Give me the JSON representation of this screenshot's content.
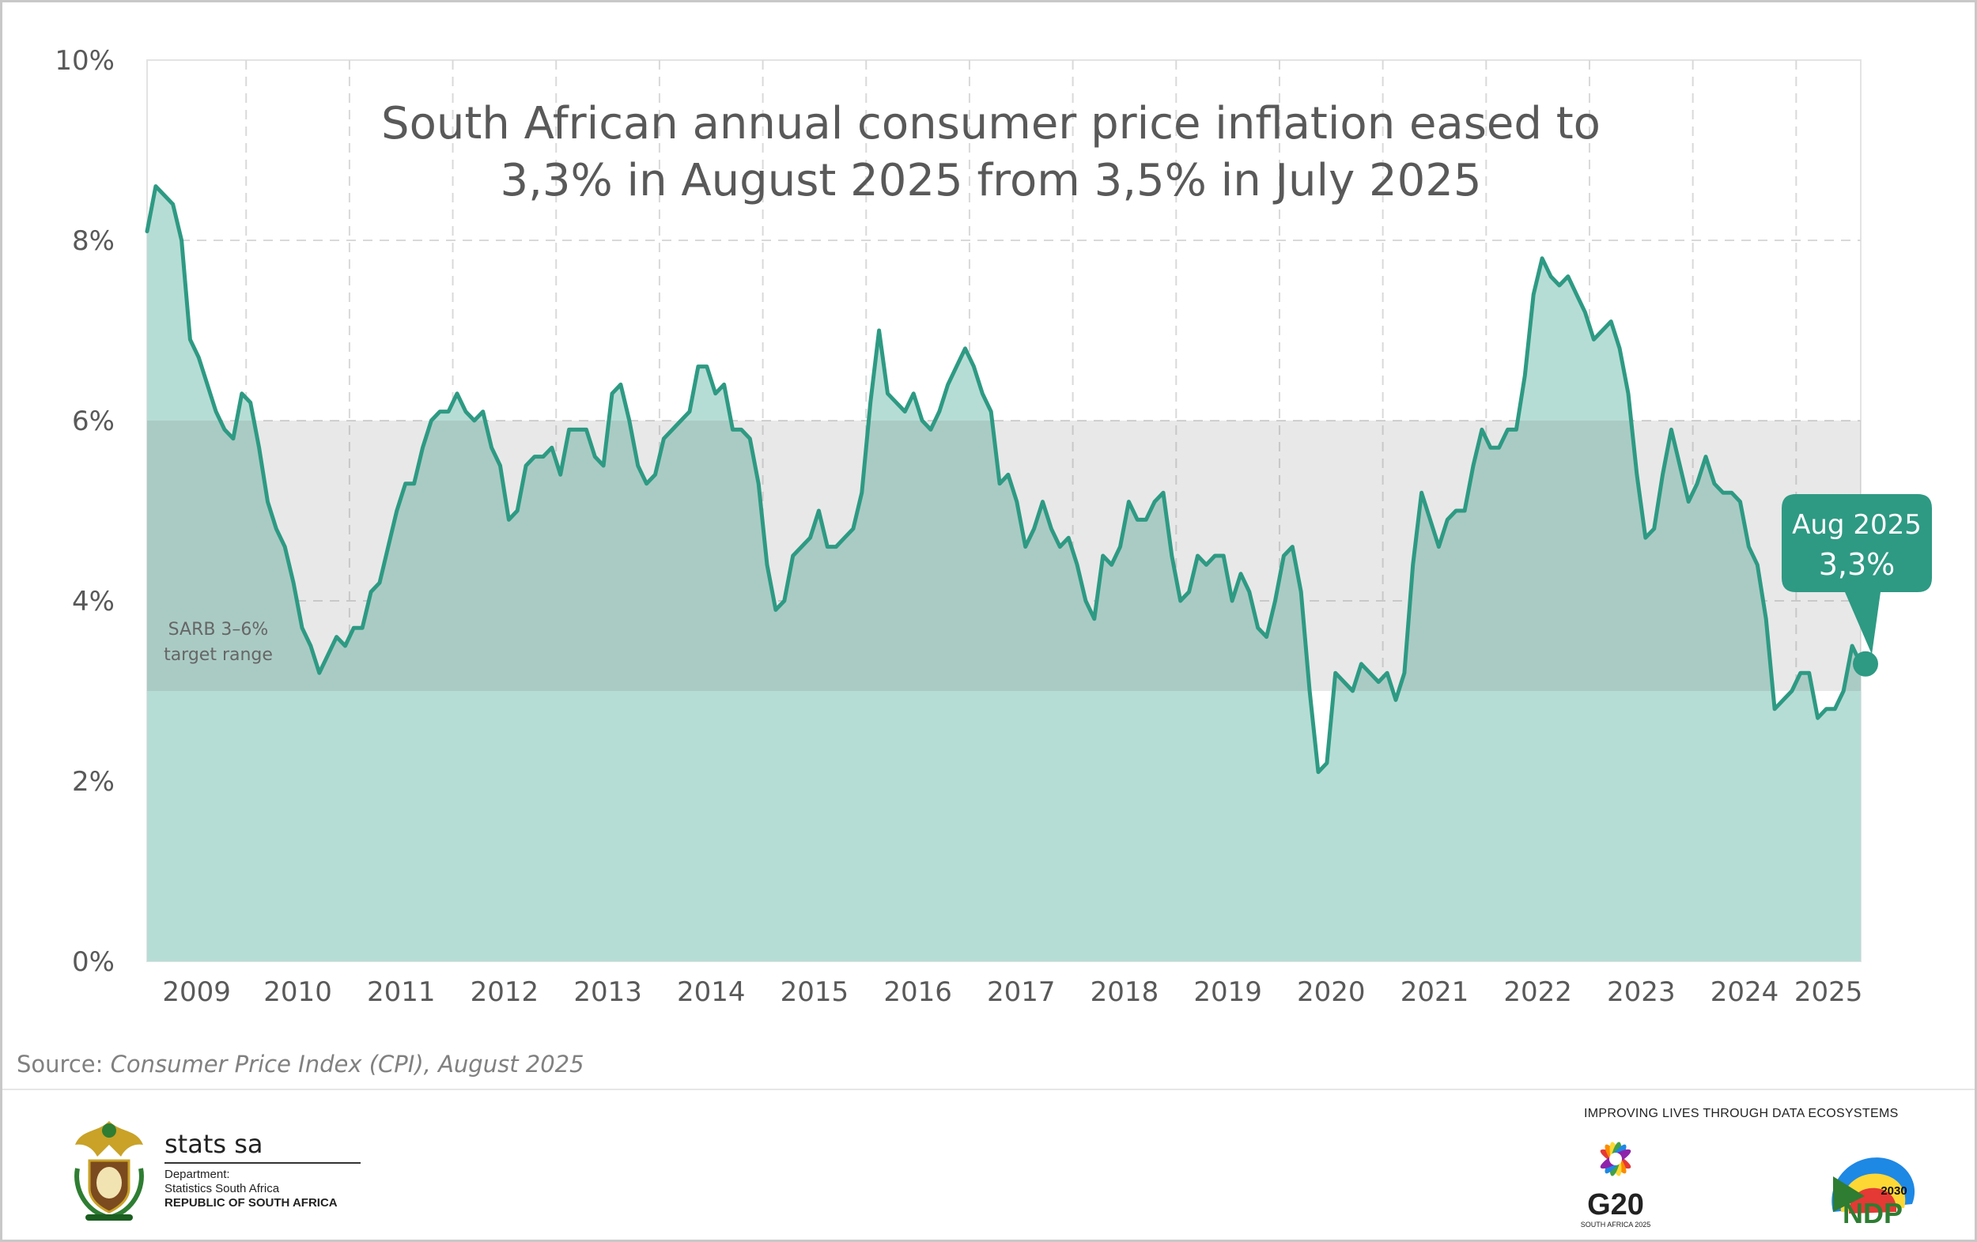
{
  "title_line1": "South African annual consumer price inflation eased to",
  "title_line2": "3,3% in August 2025 from 3,5% in July 2025",
  "source_prefix": "Source: ",
  "source_text": "Consumer Price Index (CPI), August 2025",
  "band_label_line1": "SARB 3–6%",
  "band_label_line2": "target range",
  "callout_line1": "Aug 2025",
  "callout_line2": "3,3%",
  "footer": {
    "stats_name": "stats sa",
    "dept_line1": "Department:",
    "dept_line2": "Statistics South Africa",
    "dept_line3": "REPUBLIC OF SOUTH AFRICA",
    "tagline": "IMPROVING LIVES THROUGH DATA ECOSYSTEMS",
    "g20_text": "G20",
    "g20_sub": "SOUTH AFRICA 2025",
    "ndp_text": "NDP",
    "ndp_year": "2030"
  },
  "colors": {
    "line": "#2e9a83",
    "area": "#b6ddd5",
    "band": "#e8e8e8",
    "band_over_area": "#a7cbc3",
    "callout": "#2e9a83",
    "grid": "#d9d9d9",
    "text": "#595959"
  },
  "chart_data": {
    "type": "area",
    "title": "South African annual consumer price inflation eased to 3,3% in August 2025 from 3,5% in July 2025",
    "xlabel": "",
    "ylabel": "",
    "x_start": "2009-01",
    "x_end": "2025-08",
    "x_tick_labels": [
      "2009",
      "2010",
      "2011",
      "2012",
      "2013",
      "2014",
      "2015",
      "2016",
      "2017",
      "2018",
      "2019",
      "2020",
      "2021",
      "2022",
      "2023",
      "2024",
      "2025"
    ],
    "y_tick_labels": [
      "0%",
      "2%",
      "4%",
      "6%",
      "8%",
      "10%"
    ],
    "ylim": [
      0,
      10
    ],
    "grid": true,
    "target_band": {
      "low": 3,
      "high": 6,
      "label": "SARB 3–6% target range"
    },
    "series": [
      {
        "name": "",
        "values": [
          8.1,
          8.6,
          8.5,
          8.4,
          8.0,
          6.9,
          6.7,
          6.4,
          6.1,
          5.9,
          5.8,
          6.3,
          6.2,
          5.7,
          5.1,
          4.8,
          4.6,
          4.2,
          3.7,
          3.5,
          3.2,
          3.4,
          3.6,
          3.5,
          3.7,
          3.7,
          4.1,
          4.2,
          4.6,
          5.0,
          5.3,
          5.3,
          5.7,
          6.0,
          6.1,
          6.1,
          6.3,
          6.1,
          6.0,
          6.1,
          5.7,
          5.5,
          4.9,
          5.0,
          5.5,
          5.6,
          5.6,
          5.7,
          5.4,
          5.9,
          5.9,
          5.9,
          5.6,
          5.5,
          6.3,
          6.4,
          6.0,
          5.5,
          5.3,
          5.4,
          5.8,
          5.9,
          6.0,
          6.1,
          6.6,
          6.6,
          6.3,
          6.4,
          5.9,
          5.9,
          5.8,
          5.3,
          4.4,
          3.9,
          4.0,
          4.5,
          4.6,
          4.7,
          5.0,
          4.6,
          4.6,
          4.7,
          4.8,
          5.2,
          6.2,
          7.0,
          6.3,
          6.2,
          6.1,
          6.3,
          6.0,
          5.9,
          6.1,
          6.4,
          6.6,
          6.8,
          6.6,
          6.3,
          6.1,
          5.3,
          5.4,
          5.1,
          4.6,
          4.8,
          5.1,
          4.8,
          4.6,
          4.7,
          4.4,
          4.0,
          3.8,
          4.5,
          4.4,
          4.6,
          5.1,
          4.9,
          4.9,
          5.1,
          5.2,
          4.5,
          4.0,
          4.1,
          4.5,
          4.4,
          4.5,
          4.5,
          4.0,
          4.3,
          4.1,
          3.7,
          3.6,
          4.0,
          4.5,
          4.6,
          4.1,
          3.0,
          2.1,
          2.2,
          3.2,
          3.1,
          3.0,
          3.3,
          3.2,
          3.1,
          3.2,
          2.9,
          3.2,
          4.4,
          5.2,
          4.9,
          4.6,
          4.9,
          5.0,
          5.0,
          5.5,
          5.9,
          5.7,
          5.7,
          5.9,
          5.9,
          6.5,
          7.4,
          7.8,
          7.6,
          7.5,
          7.6,
          7.4,
          7.2,
          6.9,
          7.0,
          7.1,
          6.8,
          6.3,
          5.4,
          4.7,
          4.8,
          5.4,
          5.9,
          5.5,
          5.1,
          5.3,
          5.6,
          5.3,
          5.2,
          5.2,
          5.1,
          4.6,
          4.4,
          3.8,
          2.8,
          2.9,
          3.0,
          3.2,
          3.2,
          2.7,
          2.8,
          2.8,
          3.0,
          3.5,
          3.3
        ]
      }
    ]
  }
}
